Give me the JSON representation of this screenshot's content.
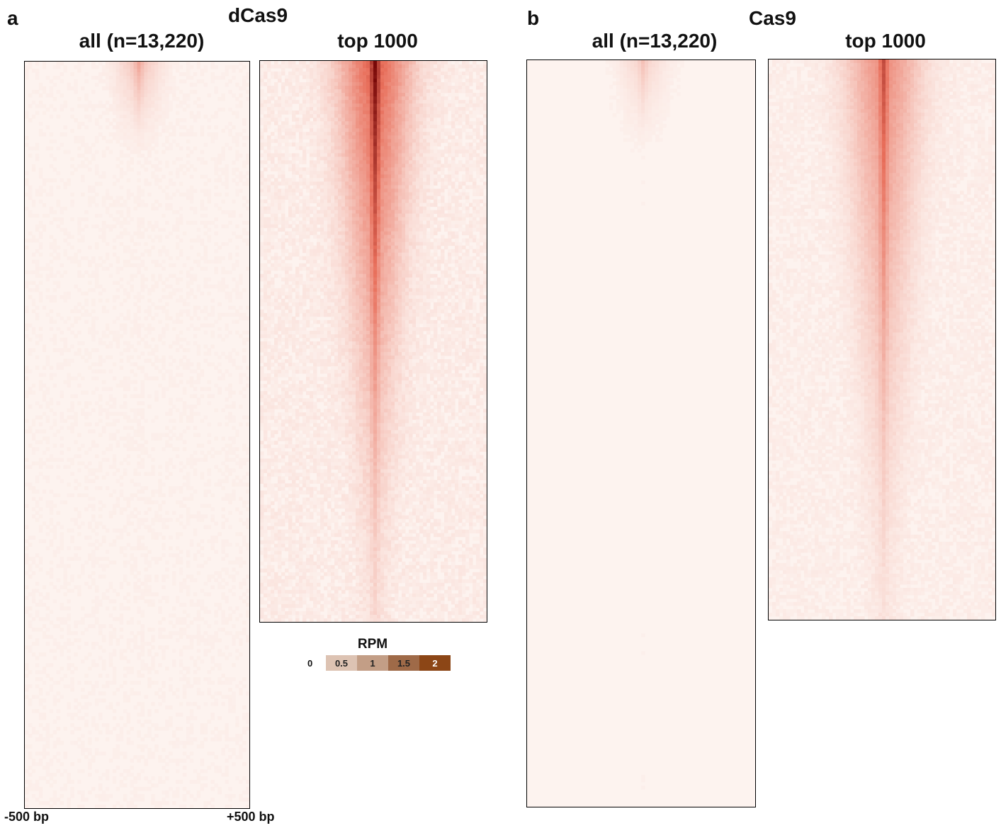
{
  "panels": [
    {
      "letter": "a",
      "group_title": "dCas9",
      "heatmaps": [
        {
          "title": "all (n=13,220)",
          "intensity": 0.35
        },
        {
          "title": "top 1000",
          "intensity": 1.0
        }
      ]
    },
    {
      "letter": "b",
      "group_title": "Cas9",
      "heatmaps": [
        {
          "title": "all (n=13,220)",
          "intensity": 0.22
        },
        {
          "title": "top 1000",
          "intensity": 0.7
        }
      ]
    }
  ],
  "axis": {
    "left_tick": "-500 bp",
    "right_tick": "+500 bp"
  },
  "colorbar": {
    "title": "RPM",
    "zero_label": "0",
    "cells": [
      {
        "label": "0.5",
        "color": "#ddc3b3",
        "text_color": "#222222"
      },
      {
        "label": "1",
        "color": "#c39e86",
        "text_color": "#222222"
      },
      {
        "label": "1.5",
        "color": "#9f6a48",
        "text_color": "#222222"
      },
      {
        "label": "2",
        "color": "#8c4616",
        "text_color": "#ffffff"
      }
    ]
  },
  "chart_data": [
    {
      "type": "heatmap",
      "title": "all (n=13,220)",
      "group": "dCas9",
      "x_range_bp": [
        -500,
        500
      ],
      "x_ticks": [
        "-500 bp",
        "+500 bp"
      ],
      "rows": 13220,
      "colorbar": {
        "label": "RPM",
        "ticks": [
          0,
          0.5,
          1,
          1.5,
          2
        ]
      }
    },
    {
      "type": "heatmap",
      "title": "top 1000",
      "group": "dCas9",
      "x_range_bp": [
        -500,
        500
      ],
      "rows": 1000,
      "colorbar": {
        "label": "RPM",
        "ticks": [
          0,
          0.5,
          1,
          1.5,
          2
        ]
      }
    },
    {
      "type": "heatmap",
      "title": "all (n=13,220)",
      "group": "Cas9",
      "x_range_bp": [
        -500,
        500
      ],
      "rows": 13220,
      "colorbar": {
        "label": "RPM",
        "ticks": [
          0,
          0.5,
          1,
          1.5,
          2
        ]
      }
    },
    {
      "type": "heatmap",
      "title": "top 1000",
      "group": "Cas9",
      "x_range_bp": [
        -500,
        500
      ],
      "rows": 1000,
      "colorbar": {
        "label": "RPM",
        "ticks": [
          0,
          0.5,
          1,
          1.5,
          2
        ]
      }
    }
  ]
}
